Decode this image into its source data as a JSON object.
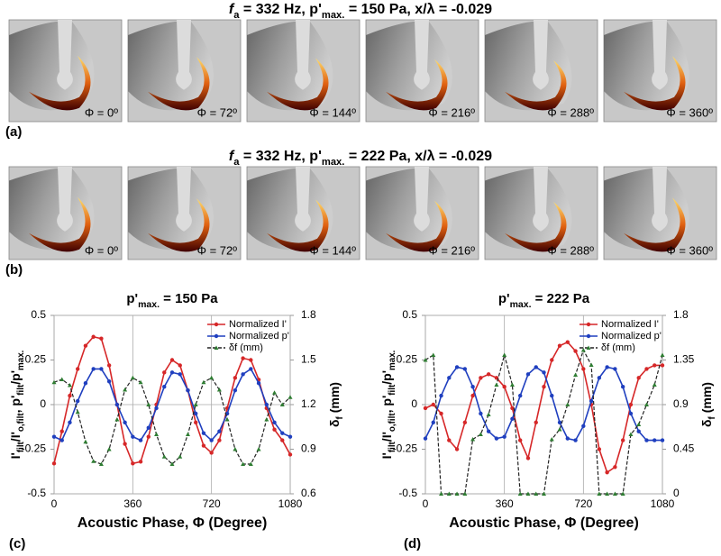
{
  "figure": {
    "rows": [
      {
        "title": [
          "f",
          "a",
          " = 332 Hz, p'",
          "max.",
          " = 150 Pa, x/λ = -0.029"
        ],
        "label": "(a)",
        "phases": [
          "Φ = 0º",
          "Φ = 72º",
          "Φ = 144º",
          "Φ = 216º",
          "Φ = 288º",
          "Φ = 360º"
        ]
      },
      {
        "title": [
          "f",
          "a",
          " = 332 Hz, p'",
          "max.",
          " = 222 Pa, x/λ = -0.029"
        ],
        "label": "(b)",
        "phases": [
          "Φ = 0º",
          "Φ = 72º",
          "Φ = 144º",
          "Φ = 216º",
          "Φ = 288º",
          "Φ = 360º"
        ]
      }
    ]
  },
  "chart_data": [
    {
      "type": "line",
      "panel_label": "(c)",
      "title": [
        "p'",
        "max.",
        " = 150 Pa"
      ],
      "xlabel": "Acoustic Phase, Φ (Degree)",
      "ylabel": [
        "I'",
        "filt",
        "/I'",
        "o,filt",
        ",  p'",
        "filt",
        "/p'",
        "max."
      ],
      "y2label": [
        "δ",
        "f",
        " (mm)"
      ],
      "x": [
        0,
        36,
        72,
        108,
        144,
        180,
        216,
        252,
        288,
        324,
        360,
        396,
        432,
        468,
        504,
        540,
        576,
        612,
        648,
        684,
        720,
        756,
        792,
        828,
        864,
        900,
        936,
        972,
        1008,
        1044,
        1080
      ],
      "xlim": [
        0,
        1080
      ],
      "xticks": [
        0,
        360,
        720,
        1080
      ],
      "ylim": [
        -0.5,
        0.5
      ],
      "yticks": [
        -0.5,
        -0.25,
        0,
        0.25,
        0.5
      ],
      "y2lim": [
        0.6,
        1.8
      ],
      "y2ticks": [
        0.6,
        0.9,
        1.2,
        1.5,
        1.8
      ],
      "grid": "x",
      "legend": "upper right",
      "series": [
        {
          "name": "Normalized I'",
          "color": "#d62728",
          "values": [
            -0.33,
            -0.15,
            0.05,
            0.2,
            0.33,
            0.38,
            0.37,
            0.22,
            0.0,
            -0.22,
            -0.33,
            -0.32,
            -0.18,
            0.0,
            0.18,
            0.25,
            0.22,
            0.08,
            -0.1,
            -0.23,
            -0.27,
            -0.2,
            -0.02,
            0.15,
            0.26,
            0.25,
            0.14,
            -0.02,
            -0.14,
            -0.2,
            -0.28
          ]
        },
        {
          "name": "Normalized p'",
          "color": "#1f3fbf",
          "values": [
            -0.18,
            -0.2,
            -0.1,
            0.02,
            0.12,
            0.2,
            0.2,
            0.13,
            0.0,
            -0.1,
            -0.18,
            -0.2,
            -0.13,
            -0.02,
            0.1,
            0.18,
            0.17,
            0.08,
            -0.05,
            -0.16,
            -0.2,
            -0.15,
            -0.05,
            0.08,
            0.17,
            0.2,
            0.12,
            0.0,
            -0.1,
            -0.16,
            -0.18
          ]
        },
        {
          "name": "δf (mm)",
          "color": "#2e7d32",
          "axis": "y2",
          "values": [
            1.35,
            1.37,
            1.33,
            1.15,
            0.95,
            0.82,
            0.8,
            0.9,
            1.1,
            1.3,
            1.38,
            1.35,
            1.2,
            1.0,
            0.85,
            0.8,
            0.85,
            1.0,
            1.2,
            1.35,
            1.38,
            1.3,
            1.1,
            0.9,
            0.8,
            0.8,
            0.9,
            1.1,
            1.28,
            1.2,
            1.25
          ]
        }
      ]
    },
    {
      "type": "line",
      "panel_label": "(d)",
      "title": [
        "p'",
        "max.",
        " = 222 Pa"
      ],
      "xlabel": "Acoustic Phase, Φ (Degree)",
      "ylabel": [
        "I'",
        "filt",
        "/I'",
        "o,filt",
        ",  p'",
        "filt",
        "/p'",
        "max."
      ],
      "y2label": [
        "δ",
        "f",
        " (mm)"
      ],
      "x": [
        0,
        36,
        72,
        108,
        144,
        180,
        216,
        252,
        288,
        324,
        360,
        396,
        432,
        468,
        504,
        540,
        576,
        612,
        648,
        684,
        720,
        756,
        792,
        828,
        864,
        900,
        936,
        972,
        1008,
        1044,
        1080
      ],
      "xlim": [
        0,
        1080
      ],
      "xticks": [
        0,
        360,
        720,
        1080
      ],
      "ylim": [
        -0.5,
        0.5
      ],
      "yticks": [
        -0.5,
        -0.25,
        0,
        0.25,
        0.5
      ],
      "y2lim": [
        0,
        1.8
      ],
      "y2ticks": [
        0,
        0.45,
        0.9,
        1.35,
        1.8
      ],
      "grid": "x",
      "legend": "upper right",
      "series": [
        {
          "name": "Normalized I'",
          "color": "#d62728",
          "values": [
            -0.02,
            0.0,
            -0.05,
            -0.2,
            -0.25,
            -0.1,
            0.05,
            0.15,
            0.17,
            0.15,
            0.1,
            -0.02,
            -0.2,
            -0.3,
            -0.1,
            0.1,
            0.25,
            0.33,
            0.35,
            0.3,
            0.2,
            0.0,
            -0.25,
            -0.38,
            -0.35,
            -0.2,
            0.0,
            0.15,
            0.2,
            0.22,
            0.22
          ]
        },
        {
          "name": "Normalized p'",
          "color": "#1f3fbf",
          "values": [
            -0.19,
            -0.1,
            0.05,
            0.15,
            0.21,
            0.2,
            0.1,
            -0.05,
            -0.15,
            -0.19,
            -0.18,
            -0.08,
            0.05,
            0.17,
            0.21,
            0.18,
            0.05,
            -0.1,
            -0.19,
            -0.2,
            -0.12,
            0.02,
            0.15,
            0.21,
            0.2,
            0.1,
            -0.05,
            -0.15,
            -0.2,
            -0.2,
            -0.2
          ]
        },
        {
          "name": "δf (mm)",
          "color": "#2e7d32",
          "axis": "y2",
          "values": [
            1.35,
            1.4,
            0,
            0,
            0,
            0,
            0.55,
            0.6,
            0.8,
            1.1,
            1.4,
            1.1,
            0,
            0,
            0,
            0,
            0.55,
            0.65,
            0.9,
            1.2,
            1.45,
            1.3,
            0,
            0,
            0,
            0,
            0.6,
            0.7,
            0.9,
            1.1,
            1.4
          ]
        }
      ]
    }
  ]
}
